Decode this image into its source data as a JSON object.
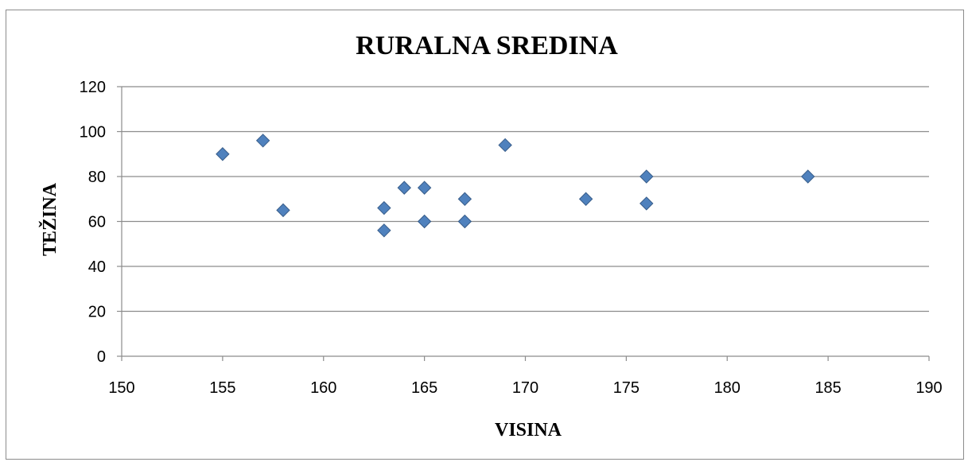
{
  "chart_data": {
    "type": "scatter",
    "title": "RURALNA SREDINA",
    "xlabel": "VISINA",
    "ylabel": "TEŽINA",
    "xlim": [
      150,
      190
    ],
    "ylim": [
      0,
      120
    ],
    "xticks": [
      150,
      155,
      160,
      165,
      170,
      175,
      180,
      185,
      190
    ],
    "yticks": [
      0,
      20,
      40,
      60,
      80,
      100,
      120
    ],
    "grid": "horizontal",
    "legend": "none",
    "marker": "diamond",
    "colors": {
      "marker_fill": "#4f81bd",
      "marker_stroke": "#385d8a",
      "grid": "#8c8c8c",
      "axis": "#8c8c8c"
    },
    "points": [
      {
        "x": 155,
        "y": 90
      },
      {
        "x": 157,
        "y": 96
      },
      {
        "x": 158,
        "y": 65
      },
      {
        "x": 163,
        "y": 66
      },
      {
        "x": 163,
        "y": 56
      },
      {
        "x": 164,
        "y": 75
      },
      {
        "x": 165,
        "y": 75
      },
      {
        "x": 165,
        "y": 60
      },
      {
        "x": 167,
        "y": 70
      },
      {
        "x": 167,
        "y": 60
      },
      {
        "x": 169,
        "y": 94
      },
      {
        "x": 173,
        "y": 70
      },
      {
        "x": 176,
        "y": 80
      },
      {
        "x": 176,
        "y": 68
      },
      {
        "x": 184,
        "y": 80
      }
    ]
  }
}
